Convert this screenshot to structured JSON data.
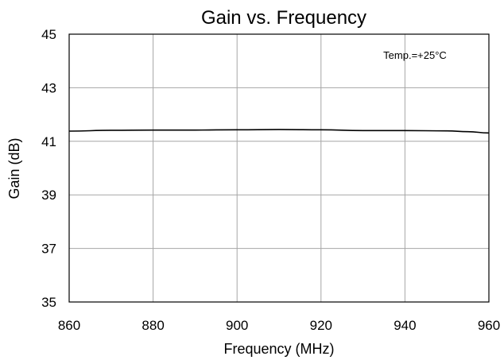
{
  "chart_data": {
    "type": "line",
    "title": "Gain vs. Frequency",
    "xlabel": "Frequency (MHz)",
    "ylabel": "Gain (dB)",
    "xlim": [
      860,
      960
    ],
    "ylim": [
      35,
      45
    ],
    "x_ticks": [
      860,
      880,
      900,
      920,
      940,
      960
    ],
    "y_ticks": [
      35,
      37,
      39,
      41,
      43,
      45
    ],
    "grid": true,
    "annotation": "Temp.=+25°C",
    "series": [
      {
        "x": [
          860,
          870,
          880,
          890,
          900,
          910,
          920,
          930,
          940,
          950,
          955,
          960
        ],
        "y": [
          41.38,
          41.41,
          41.42,
          41.42,
          41.43,
          41.44,
          41.43,
          41.4,
          41.4,
          41.39,
          41.36,
          41.31
        ],
        "color": "#000000"
      }
    ]
  }
}
